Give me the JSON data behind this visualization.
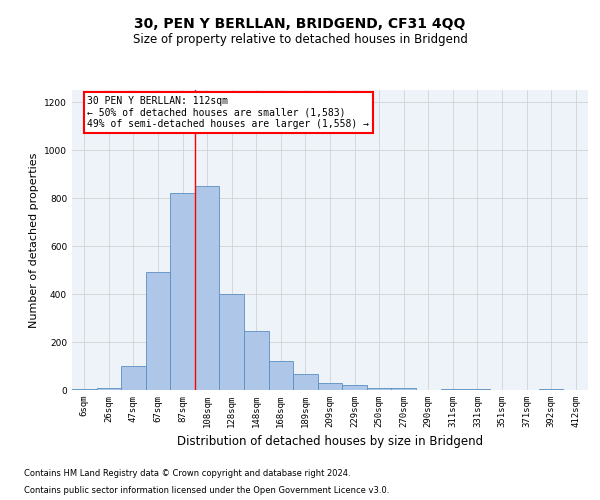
{
  "title": "30, PEN Y BERLLAN, BRIDGEND, CF31 4QQ",
  "subtitle": "Size of property relative to detached houses in Bridgend",
  "xlabel": "Distribution of detached houses by size in Bridgend",
  "ylabel": "Number of detached properties",
  "footer_line1": "Contains HM Land Registry data © Crown copyright and database right 2024.",
  "footer_line2": "Contains public sector information licensed under the Open Government Licence v3.0.",
  "annotation_title": "30 PEN Y BERLLAN: 112sqm",
  "annotation_line1": "← 50% of detached houses are smaller (1,583)",
  "annotation_line2": "49% of semi-detached houses are larger (1,558) →",
  "bar_labels": [
    "6sqm",
    "26sqm",
    "47sqm",
    "67sqm",
    "87sqm",
    "108sqm",
    "128sqm",
    "148sqm",
    "168sqm",
    "189sqm",
    "209sqm",
    "229sqm",
    "250sqm",
    "270sqm",
    "290sqm",
    "311sqm",
    "331sqm",
    "351sqm",
    "371sqm",
    "392sqm",
    "412sqm"
  ],
  "bar_values": [
    5,
    10,
    100,
    490,
    820,
    850,
    400,
    245,
    120,
    65,
    30,
    20,
    10,
    10,
    0,
    5,
    5,
    0,
    0,
    5,
    0
  ],
  "bar_color": "#aec6e8",
  "bar_edge_color": "#5a8fc2",
  "highlight_index": 5,
  "vline_color": "red",
  "ylim": [
    0,
    1250
  ],
  "yticks": [
    0,
    200,
    400,
    600,
    800,
    1000,
    1200
  ],
  "background_color": "#eef2f9",
  "grid_color": "#cccccc",
  "annotation_box_color": "white",
  "annotation_box_edge": "red",
  "title_fontsize": 10,
  "subtitle_fontsize": 8.5,
  "ylabel_fontsize": 8,
  "xlabel_fontsize": 8.5,
  "tick_fontsize": 6.5,
  "footer_fontsize": 6,
  "annot_fontsize": 7
}
